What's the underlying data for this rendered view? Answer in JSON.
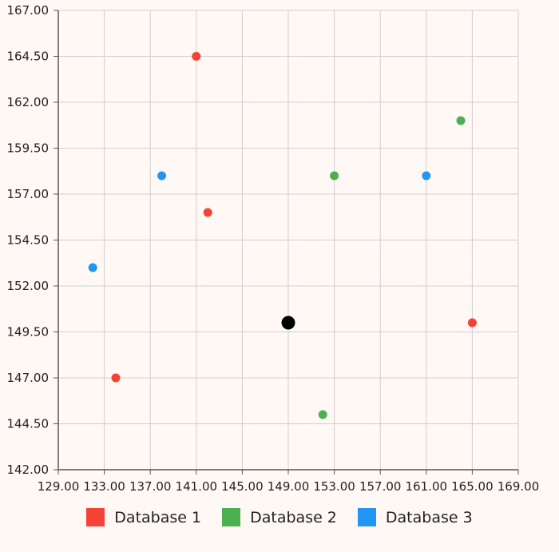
{
  "chart_data": {
    "type": "scatter",
    "title": "",
    "xlabel": "",
    "ylabel": "",
    "xlim": [
      129,
      169
    ],
    "ylim": [
      142,
      167
    ],
    "x_ticks": [
      "129.00",
      "133.00",
      "137.00",
      "141.00",
      "145.00",
      "149.00",
      "153.00",
      "157.00",
      "161.00",
      "165.00",
      "169.00"
    ],
    "y_ticks": [
      "167.00",
      "164.50",
      "162.00",
      "159.50",
      "157.00",
      "154.50",
      "152.00",
      "149.50",
      "147.00",
      "144.50",
      "142.00"
    ],
    "grid": true,
    "legend_position": "bottom",
    "series": [
      {
        "name": "Database 1",
        "color": "#f44336",
        "points": [
          [
            141,
            164.5
          ],
          [
            142,
            156
          ],
          [
            134,
            147
          ],
          [
            165,
            150
          ]
        ]
      },
      {
        "name": "Database 2",
        "color": "#4caf50",
        "points": [
          [
            164,
            161
          ],
          [
            153,
            158
          ],
          [
            152,
            145
          ]
        ]
      },
      {
        "name": "Database 3",
        "color": "#2196f3",
        "points": [
          [
            138,
            158
          ],
          [
            132,
            153
          ],
          [
            161,
            158
          ]
        ]
      }
    ],
    "highlight_points": [
      {
        "x": 149,
        "y": 150,
        "color": "#000000"
      }
    ]
  }
}
